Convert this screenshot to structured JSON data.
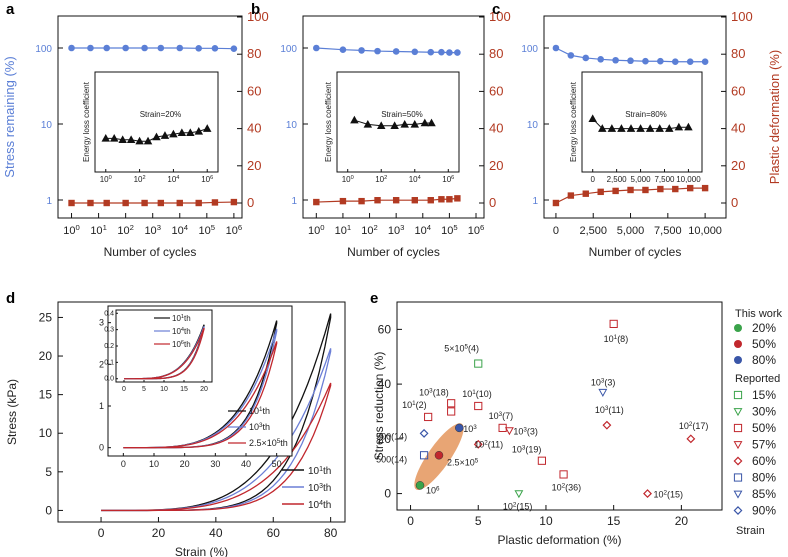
{
  "colors": {
    "blue": "#5b7fd6",
    "red": "#b23a22",
    "black": "#111111",
    "orange": "#e8a574",
    "green": "#3aa34a",
    "darkred": "#c1272d",
    "navy": "#3a56a8",
    "lightblue": "#6c7fd6"
  },
  "chart_data": [
    {
      "id": "a",
      "label": "a",
      "type": "line",
      "left_axis": {
        "label": "Stress remaining (%)",
        "scale": "log",
        "ylim": [
          1,
          100
        ],
        "ticks": [
          "1",
          "10",
          "100"
        ]
      },
      "right_axis": {
        "label": "Plastic deformation (%)",
        "ylim": [
          0,
          100
        ],
        "ticks": [
          "0",
          "20",
          "40",
          "60",
          "80",
          "100"
        ]
      },
      "xlabel": "Number of cycles",
      "x_ticks": [
        "10^0",
        "10^1",
        "10^2",
        "10^3",
        "10^4",
        "10^5",
        "10^6"
      ],
      "series": [
        {
          "name": "Stress remaining",
          "axis": "left",
          "color": "blue",
          "x": [
            0,
            0.7,
            1.3,
            2,
            2.7,
            3.3,
            4,
            4.7,
            5.3,
            6
          ],
          "values": [
            100,
            100,
            100,
            100,
            100,
            100,
            100,
            99,
            99,
            98
          ]
        },
        {
          "name": "Plastic deformation",
          "axis": "right",
          "color": "red",
          "x": [
            0,
            0.7,
            1.3,
            2,
            2.7,
            3.3,
            4,
            4.7,
            5.3,
            6
          ],
          "values": [
            0,
            0,
            0,
            0,
            0,
            0,
            0,
            0,
            0.3,
            0.5
          ]
        }
      ],
      "inset": {
        "ylabel": "Energy loss coefficient",
        "annotation": "Strain=20%",
        "x_ticks": [
          "10^0",
          "10^2",
          "10^4",
          "10^6"
        ],
        "x": [
          0,
          0.5,
          1,
          1.5,
          2,
          2.5,
          3,
          3.5,
          4,
          4.5,
          5,
          5.5,
          6
        ],
        "values": [
          0.24,
          0.24,
          0.23,
          0.23,
          0.22,
          0.22,
          0.25,
          0.26,
          0.27,
          0.28,
          0.28,
          0.29,
          0.31
        ]
      }
    },
    {
      "id": "b",
      "label": "b",
      "type": "line",
      "left_axis": {
        "label": "Stress remaining (%)",
        "scale": "log",
        "ylim": [
          1,
          100
        ],
        "ticks": [
          "1",
          "10",
          "100"
        ]
      },
      "right_axis": {
        "label": "Plastic deformation (%)",
        "ylim": [
          0,
          100
        ],
        "ticks": [
          "0",
          "20",
          "40",
          "60",
          "80",
          "100"
        ]
      },
      "xlabel": "Number of cycles",
      "x_ticks": [
        "10^0",
        "10^1",
        "10^2",
        "10^3",
        "10^4",
        "10^5",
        "10^6"
      ],
      "series": [
        {
          "name": "Stress remaining",
          "axis": "left",
          "color": "blue",
          "x": [
            0,
            1,
            1.7,
            2.3,
            3,
            3.7,
            4.3,
            4.7,
            5,
            5.3
          ],
          "values": [
            100,
            95,
            93,
            91,
            90,
            89,
            88,
            88,
            87,
            87
          ]
        },
        {
          "name": "Plastic deformation",
          "axis": "right",
          "color": "red",
          "x": [
            0,
            1,
            1.7,
            2.3,
            3,
            3.7,
            4.3,
            4.7,
            5,
            5.3
          ],
          "values": [
            0.5,
            1,
            1,
            1.5,
            1.5,
            1.5,
            1.5,
            2,
            2,
            2.5
          ]
        }
      ],
      "inset": {
        "ylabel": "Energy loss coefficient",
        "annotation": "Strain=50%",
        "x_ticks": [
          "10^0",
          "10^2",
          "10^4",
          "10^6"
        ],
        "x": [
          0.4,
          1.2,
          2,
          2.8,
          3.4,
          4,
          4.6,
          5
        ],
        "values": [
          0.37,
          0.34,
          0.33,
          0.33,
          0.34,
          0.34,
          0.35,
          0.35
        ]
      }
    },
    {
      "id": "c",
      "label": "c",
      "type": "line",
      "left_axis": {
        "label": "Stress remaining (%)",
        "scale": "log",
        "ylim": [
          1,
          100
        ],
        "ticks": [
          "1",
          "10",
          "100"
        ]
      },
      "right_axis": {
        "label": "Plastic deformation (%)",
        "ylim": [
          0,
          100
        ],
        "ticks": [
          "0",
          "20",
          "40",
          "60",
          "80",
          "100"
        ]
      },
      "xlabel": "Number of cycles",
      "x_ticks": [
        "0",
        "2,500",
        "5,000",
        "7,500",
        "10,000"
      ],
      "series": [
        {
          "name": "Stress remaining",
          "axis": "left",
          "color": "blue",
          "x": [
            0,
            1000,
            2000,
            3000,
            4000,
            5000,
            6000,
            7000,
            8000,
            9000,
            10000
          ],
          "values": [
            100,
            80,
            74,
            71,
            69,
            68,
            67,
            67,
            66,
            66,
            66
          ]
        },
        {
          "name": "Plastic deformation",
          "axis": "right",
          "color": "red",
          "x": [
            0,
            1000,
            2000,
            3000,
            4000,
            5000,
            6000,
            7000,
            8000,
            9000,
            10000
          ],
          "values": [
            0,
            4,
            5,
            6,
            6.5,
            7,
            7,
            7.5,
            7.5,
            8,
            8
          ]
        }
      ],
      "inset": {
        "ylabel": "Energy loss coefficient",
        "annotation": "Strain=80%",
        "x_ticks": [
          "0",
          "2,500",
          "5,000",
          "7,500",
          "10,000"
        ],
        "x": [
          0,
          1000,
          2000,
          3000,
          4000,
          5000,
          6000,
          7000,
          8000,
          9000,
          10000
        ],
        "values": [
          0.38,
          0.31,
          0.31,
          0.31,
          0.31,
          0.31,
          0.31,
          0.31,
          0.31,
          0.32,
          0.32
        ]
      }
    },
    {
      "id": "d",
      "label": "d",
      "type": "line",
      "xlabel": "Strain (%)",
      "ylabel": "Stress (kPa)",
      "xlim": [
        -15,
        85
      ],
      "ylim": [
        -1.5,
        27
      ],
      "x_ticks": [
        "0",
        "20",
        "40",
        "60",
        "80"
      ],
      "y_ticks": [
        "0",
        "5",
        "10",
        "15",
        "20",
        "25"
      ],
      "legend": [
        "10^1th",
        "10^3th",
        "10^4th"
      ],
      "series": [
        {
          "name": "10^1th",
          "color": "black",
          "max_stress": 25.5
        },
        {
          "name": "10^3th",
          "color": "lightblue",
          "max_stress": 21.0
        },
        {
          "name": "10^4th",
          "color": "darkred",
          "max_stress": 16.5
        }
      ],
      "inset_50": {
        "xlim": [
          -5,
          55
        ],
        "ylim": [
          -0.2,
          3.4
        ],
        "x_ticks": [
          "0",
          "10",
          "20",
          "30",
          "40",
          "50"
        ],
        "y_ticks": [
          "0",
          "1",
          "2",
          "3"
        ],
        "legend": [
          "10^1th",
          "10^3th",
          "2.5×10^5th"
        ],
        "max_stress": [
          3.05,
          2.85,
          2.55
        ]
      },
      "inset_20": {
        "xlim": [
          -2,
          22
        ],
        "ylim": [
          -0.02,
          0.42
        ],
        "x_ticks": [
          "0",
          "5",
          "10",
          "15",
          "20"
        ],
        "y_ticks": [
          "0.0",
          "0.1",
          "0.2",
          "0.3",
          "0.4"
        ],
        "legend": [
          "10^1th",
          "10^4th",
          "10^6th"
        ],
        "max_stress": [
          0.33,
          0.32,
          0.31
        ]
      }
    },
    {
      "id": "e",
      "label": "e",
      "type": "scatter",
      "xlabel": "Plastic deformation (%)",
      "ylabel": "Stress reduction (%)",
      "xlim": [
        -1,
        23
      ],
      "ylim": [
        -6,
        70
      ],
      "x_ticks": [
        "0",
        "5",
        "10",
        "15",
        "20"
      ],
      "y_ticks": [
        "0",
        "20",
        "40",
        "60"
      ],
      "points": [
        {
          "x": 0.7,
          "y": 3,
          "type": "circle",
          "color": "green",
          "label": "10^6"
        },
        {
          "x": 2.1,
          "y": 14,
          "type": "circle",
          "color": "darkred",
          "label": "2.5×10^5"
        },
        {
          "x": 3.6,
          "y": 24,
          "type": "circle",
          "color": "navy",
          "label": "10^3"
        },
        {
          "x": 5,
          "y": 47.5,
          "type": "square",
          "color": "green",
          "label": "5×10^5(4)"
        },
        {
          "x": 3,
          "y": 33,
          "type": "square",
          "color": "darkred",
          "label": "10^3(18)"
        },
        {
          "x": 3,
          "y": 30,
          "type": "square",
          "color": "darkred",
          "label": ""
        },
        {
          "x": 5,
          "y": 32,
          "type": "square",
          "color": "darkred",
          "label": "10^1(10)"
        },
        {
          "x": 1.3,
          "y": 28,
          "type": "square",
          "color": "darkred",
          "label": "10^1(2)"
        },
        {
          "x": 1,
          "y": 14,
          "type": "square",
          "color": "navy",
          "label": "500(14)"
        },
        {
          "x": 15,
          "y": 62,
          "type": "square",
          "color": "darkred",
          "label": "10^1(8)"
        },
        {
          "x": 6.8,
          "y": 24,
          "type": "square",
          "color": "darkred",
          "label": "10^3(7)"
        },
        {
          "x": 9.7,
          "y": 12,
          "type": "square",
          "color": "darkred",
          "label": "10^3(19)"
        },
        {
          "x": 11.3,
          "y": 7,
          "type": "square",
          "color": "darkred",
          "label": "10^2(36)"
        },
        {
          "x": 8,
          "y": 0,
          "type": "tri",
          "color": "green",
          "label": "10^2(15)"
        },
        {
          "x": 7.3,
          "y": 23,
          "type": "tri",
          "color": "darkred",
          "label": "10^3(3)"
        },
        {
          "x": 14.2,
          "y": 37,
          "type": "tri",
          "color": "navy",
          "label": "10^3(3)"
        },
        {
          "x": 5,
          "y": 18,
          "type": "diamond",
          "color": "darkred",
          "label": "10^2(11)"
        },
        {
          "x": 14.5,
          "y": 25,
          "type": "diamond",
          "color": "darkred",
          "label": "10^3(11)"
        },
        {
          "x": 20.7,
          "y": 20,
          "type": "diamond",
          "color": "darkred",
          "label": "10^2(17)"
        },
        {
          "x": 17.5,
          "y": 0,
          "type": "diamond",
          "color": "darkred",
          "label": "10^2(15)"
        },
        {
          "x": 1,
          "y": 22,
          "type": "diamond",
          "color": "navy",
          "label": "500(14)"
        }
      ],
      "legend": {
        "title_this": "This work",
        "this": [
          {
            "label": "20%",
            "color": "green"
          },
          {
            "label": "50%",
            "color": "darkred"
          },
          {
            "label": "80%",
            "color": "navy"
          }
        ],
        "title_reported": "Reported",
        "reported": [
          {
            "label": "15%",
            "type": "square",
            "color": "green"
          },
          {
            "label": "30%",
            "type": "tri",
            "color": "green"
          },
          {
            "label": "50%",
            "type": "square",
            "color": "darkred"
          },
          {
            "label": "57%",
            "type": "tri",
            "color": "darkred"
          },
          {
            "label": "60%",
            "type": "diamond",
            "color": "darkred"
          },
          {
            "label": "80%",
            "type": "square",
            "color": "navy"
          },
          {
            "label": "85%",
            "type": "tri",
            "color": "navy"
          },
          {
            "label": "90%",
            "type": "diamond",
            "color": "navy"
          }
        ],
        "footer": "Strain"
      }
    }
  ]
}
